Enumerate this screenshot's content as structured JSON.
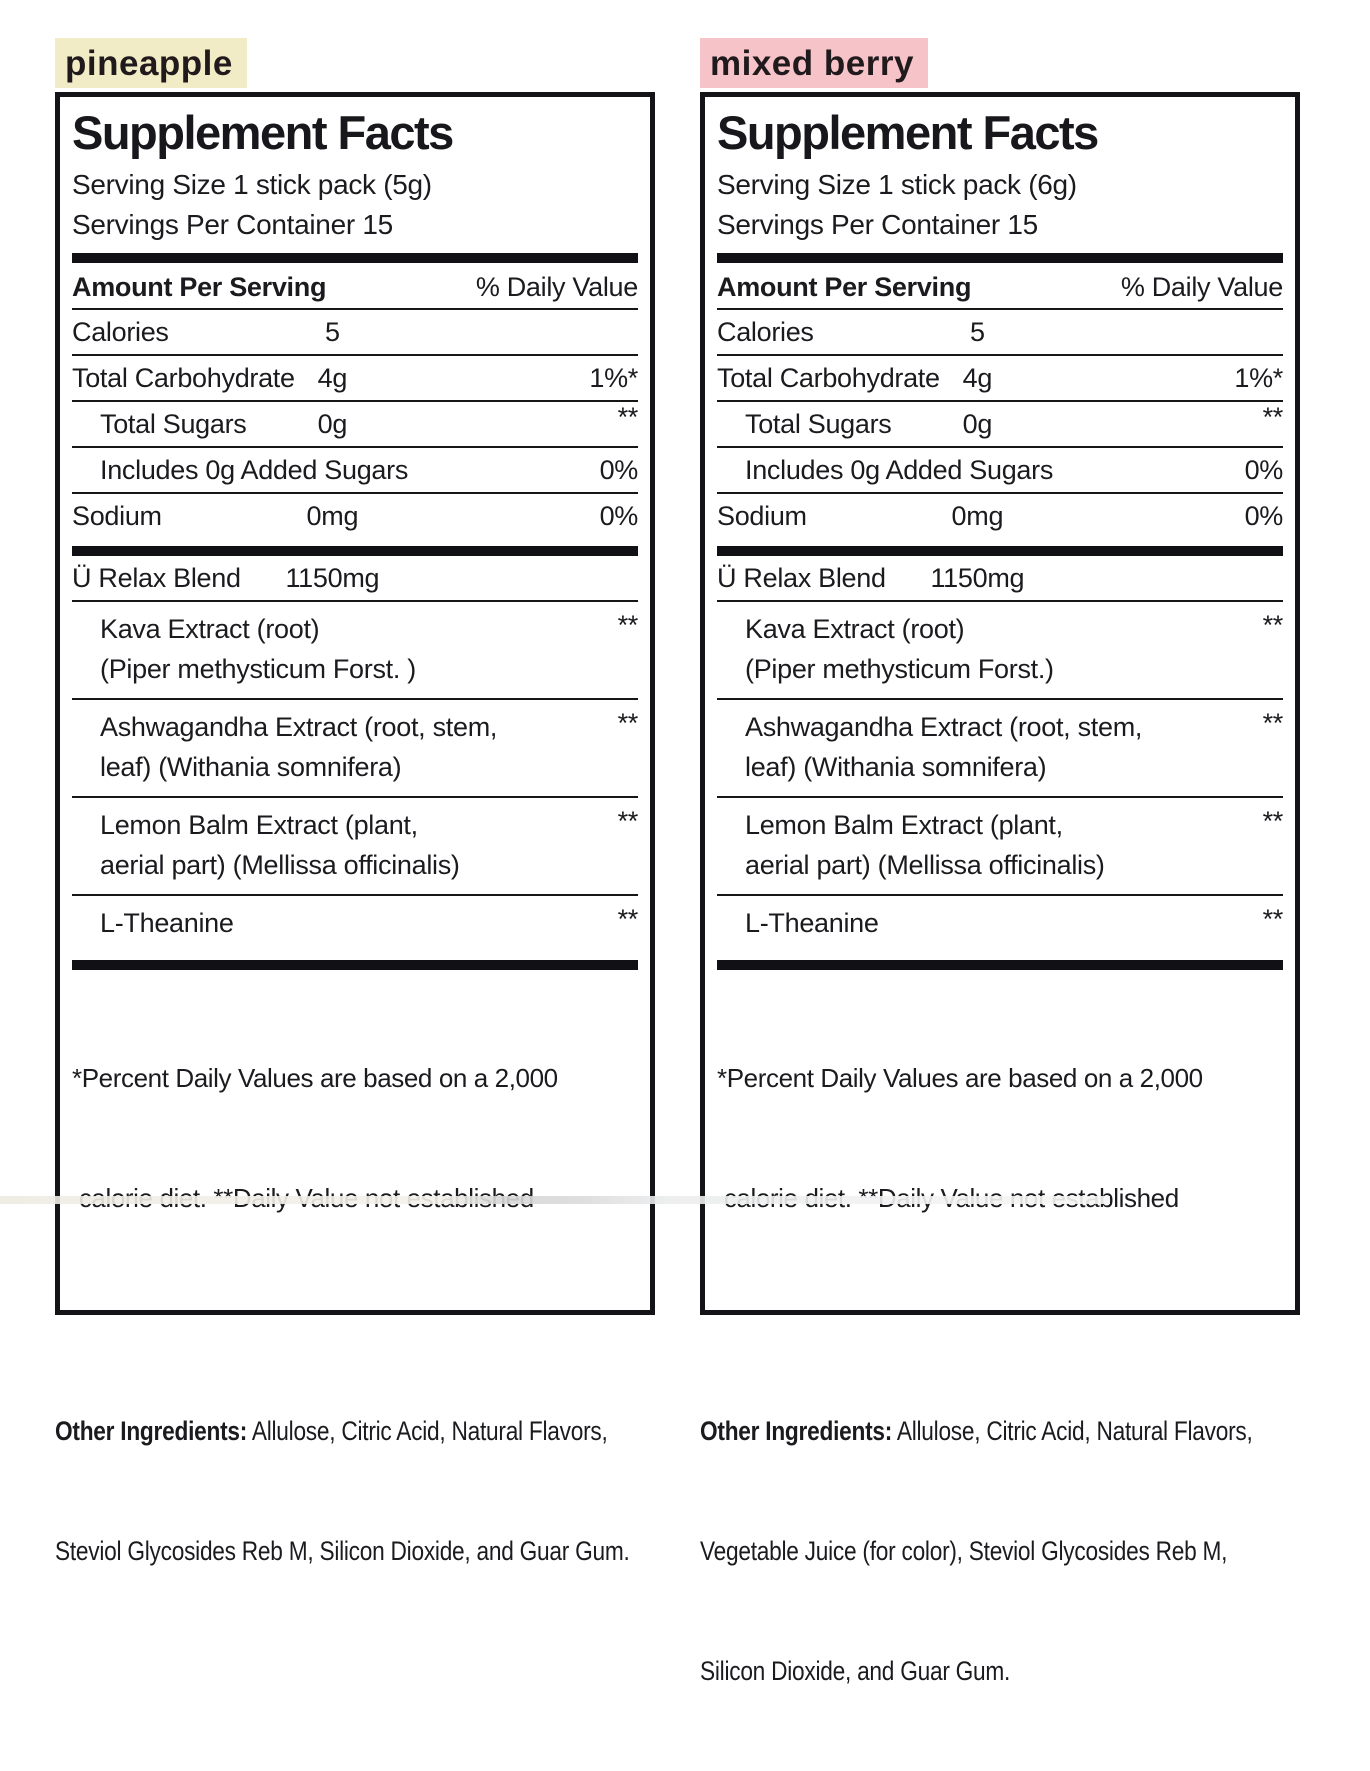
{
  "page": {
    "background": "#ffffff"
  },
  "labels": [
    {
      "flavor": "pineapple",
      "highlight_color": "#f2ecc6",
      "title": "Supplement Facts",
      "serving_size": "Serving Size 1 stick pack (5g)",
      "servings_per_container": "Servings Per Container 15",
      "columns": {
        "amount_header": "Amount Per Serving",
        "dv_header": "% Daily Value"
      },
      "nutrients": [
        {
          "name": "Calories",
          "amount": "5",
          "dv": ""
        },
        {
          "name": "Total Carbohydrate",
          "amount": "4g",
          "dv": "1%*"
        },
        {
          "name": "Total Sugars",
          "amount": "0g",
          "dv": "**"
        },
        {
          "name": "Includes 0g Added Sugars",
          "amount": "",
          "dv": "0%"
        },
        {
          "name": "Sodium",
          "amount": "0mg",
          "dv": "0%"
        }
      ],
      "blend": {
        "name": "Ü Relax Blend",
        "amount": "1150mg"
      },
      "blend_ingredients": [
        {
          "lines": [
            "Kava Extract (root)",
            "(Piper methysticum Forst. )"
          ],
          "dv": "**"
        },
        {
          "lines": [
            "Ashwagandha Extract (root, stem,",
            "leaf) (Withania somnifera)"
          ],
          "dv": "**"
        },
        {
          "lines": [
            "Lemon Balm Extract (plant,",
            "aerial part) (Mellissa officinalis)"
          ],
          "dv": "**"
        },
        {
          "lines": [
            "L-Theanine"
          ],
          "dv": "**"
        }
      ],
      "footnote_lines": [
        "*Percent Daily Values are based on a 2,000",
        " calorie diet. **Daily Value not established"
      ],
      "other_ingredients": {
        "label": "Other Ingredients:",
        "lines": [
          " Allulose, Citric Acid, Natural Flavors,",
          "Steviol Glycosides Reb M, Silicon Dioxide, and Guar Gum."
        ]
      }
    },
    {
      "flavor": "mixed berry",
      "highlight_color": "#f6c3c9",
      "title": "Supplement Facts",
      "serving_size": "Serving Size 1 stick pack (6g)",
      "servings_per_container": "Servings Per Container 15",
      "columns": {
        "amount_header": "Amount Per Serving",
        "dv_header": "% Daily Value"
      },
      "nutrients": [
        {
          "name": "Calories",
          "amount": "5",
          "dv": ""
        },
        {
          "name": "Total Carbohydrate",
          "amount": "4g",
          "dv": "1%*"
        },
        {
          "name": "Total Sugars",
          "amount": "0g",
          "dv": "**"
        },
        {
          "name": "Includes 0g Added Sugars",
          "amount": "",
          "dv": "0%"
        },
        {
          "name": "Sodium",
          "amount": "0mg",
          "dv": "0%"
        }
      ],
      "blend": {
        "name": "Ü Relax Blend",
        "amount": "1150mg"
      },
      "blend_ingredients": [
        {
          "lines": [
            "Kava Extract (root)",
            "(Piper methysticum Forst.)"
          ],
          "dv": "**"
        },
        {
          "lines": [
            "Ashwagandha Extract (root, stem,",
            "leaf) (Withania somnifera)"
          ],
          "dv": "**"
        },
        {
          "lines": [
            "Lemon Balm Extract (plant,",
            "aerial part) (Mellissa officinalis)"
          ],
          "dv": "**"
        },
        {
          "lines": [
            "L-Theanine"
          ],
          "dv": "**"
        }
      ],
      "footnote_lines": [
        "*Percent Daily Values are based on a 2,000",
        " calorie diet. **Daily Value not established"
      ],
      "other_ingredients": {
        "label": "Other Ingredients:",
        "lines": [
          " Allulose, Citric Acid, Natural Flavors,",
          "Vegetable Juice (for color), Steviol Glycosides Reb M,",
          "Silicon Dioxide, and Guar Gum."
        ]
      }
    }
  ]
}
